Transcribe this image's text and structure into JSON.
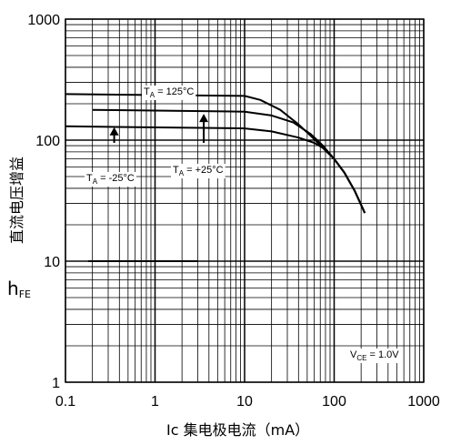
{
  "chart_data": {
    "type": "line",
    "x_scale": "log",
    "y_scale": "log",
    "xlim": [
      0.1,
      1000
    ],
    "ylim": [
      1,
      1000
    ],
    "grid": true,
    "ylabel": {
      "main": "h",
      "sub": "FE",
      "chinese": "直流电压增益"
    },
    "xlabel": "Ic  集电极电流（mA）",
    "x_tick_labels": [
      "0.1",
      "1",
      "10",
      "100",
      "1000"
    ],
    "y_tick_labels": [
      "1",
      "10",
      "100",
      "1000"
    ],
    "annotations": {
      "t125": {
        "main": "T",
        "sub": "A",
        "rest": " = 125°C"
      },
      "t25": {
        "main": "T",
        "sub": "A",
        "rest": " = +25°C"
      },
      "tm25": {
        "main": "T",
        "sub": "A",
        "rest": " = -25°C"
      },
      "vce": {
        "main": "V",
        "sub": "CE",
        "rest": " = 1.0V"
      }
    },
    "series": [
      {
        "id": "t125",
        "points": [
          [
            0.1,
            240
          ],
          [
            10,
            232
          ],
          [
            15,
            215
          ],
          [
            25,
            178
          ],
          [
            40,
            135
          ],
          [
            60,
            102
          ],
          [
            80,
            82
          ],
          [
            100,
            70
          ],
          [
            130,
            54
          ],
          [
            170,
            38
          ],
          [
            220,
            25
          ]
        ]
      },
      {
        "id": "t25",
        "points": [
          [
            0.2,
            178
          ],
          [
            10,
            172
          ],
          [
            20,
            160
          ],
          [
            35,
            140
          ],
          [
            55,
            112
          ],
          [
            75,
            90
          ],
          [
            100,
            70
          ],
          [
            130,
            54
          ],
          [
            170,
            38
          ],
          [
            220,
            25
          ]
        ]
      },
      {
        "id": "tm25",
        "points": [
          [
            0.1,
            130
          ],
          [
            10,
            125
          ],
          [
            20,
            118
          ],
          [
            40,
            105
          ],
          [
            60,
            95
          ],
          [
            80,
            84
          ],
          [
            100,
            70
          ],
          [
            130,
            54
          ],
          [
            170,
            38
          ],
          [
            220,
            25
          ]
        ]
      },
      {
        "id": "segment",
        "points": [
          [
            0.18,
            10
          ],
          [
            3,
            10
          ]
        ]
      }
    ],
    "arrows": [
      {
        "x": 0.35,
        "y_from": 95,
        "y_to": 128
      },
      {
        "x": 3.5,
        "y_from": 95,
        "y_to": 165
      }
    ]
  }
}
